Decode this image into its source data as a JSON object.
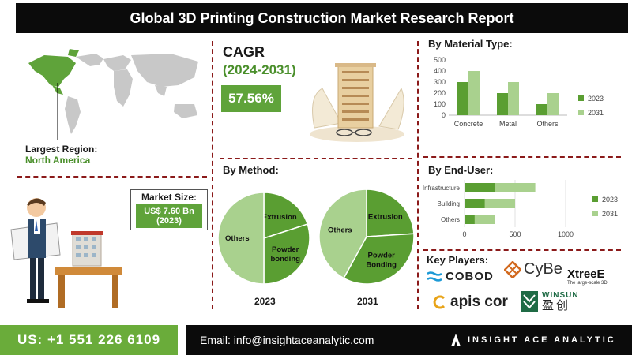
{
  "header": {
    "title": "Global 3D Printing Construction Market Research Report"
  },
  "region": {
    "label": "Largest Region:",
    "value": "North America"
  },
  "market_size": {
    "label": "Market Size:",
    "value_line1": "US$ 7.60 Bn",
    "value_line2": "(2023)"
  },
  "cagr": {
    "label": "CAGR",
    "period": "(2024-2031)",
    "value": "57.56%"
  },
  "colors": {
    "dark_green": "#5a9e32",
    "light_green": "#a9d18e",
    "accent_green": "#4a8f2b",
    "divider": "#8b1a1a"
  },
  "chart_data": [
    {
      "type": "bar",
      "title": "By Material Type:",
      "categories": [
        "Concrete",
        "Metal",
        "Others"
      ],
      "series": [
        {
          "name": "2023",
          "values": [
            300,
            200,
            100
          ]
        },
        {
          "name": "2031",
          "values": [
            400,
            300,
            200
          ]
        }
      ],
      "ylim": [
        0,
        500
      ],
      "yticks": [
        "0",
        "100",
        "200",
        "300",
        "400",
        "500"
      ],
      "legend": "right"
    },
    {
      "type": "pie",
      "title": "By Method:",
      "panel": "2023",
      "labels": [
        "Extrusion",
        "Powder bonding",
        "Others"
      ],
      "values": [
        20,
        30,
        50
      ]
    },
    {
      "type": "pie",
      "panel": "2031",
      "labels": [
        "Extrusion",
        "Powder Bonding",
        "Others"
      ],
      "values": [
        24,
        34,
        42
      ]
    },
    {
      "type": "bar",
      "orientation": "horizontal",
      "title": "By End-User:",
      "categories": [
        "Infrastructure",
        "Building",
        "Others"
      ],
      "series": [
        {
          "name": "2023",
          "values": [
            300,
            200,
            100
          ]
        },
        {
          "name": "2031",
          "values": [
            700,
            500,
            300
          ]
        }
      ],
      "xlim": [
        0,
        1000
      ],
      "xticks": [
        "0",
        "500",
        "1000"
      ],
      "legend": "right"
    }
  ],
  "key_players": {
    "label": "Key Players:",
    "cobod": "COBOD",
    "cybe": "CyBe",
    "xtreee": "XtreeE",
    "xtreee_sub": "The large-scale 3D",
    "apis": "apis cor",
    "winsun": "WINSUN",
    "winsun_cn": "盈创"
  },
  "footer": {
    "phone": "US: +1 551 226 6109",
    "email": "Email: info@insightaceanalytic.com",
    "brand": "INSIGHT ACE ANALYTIC"
  }
}
